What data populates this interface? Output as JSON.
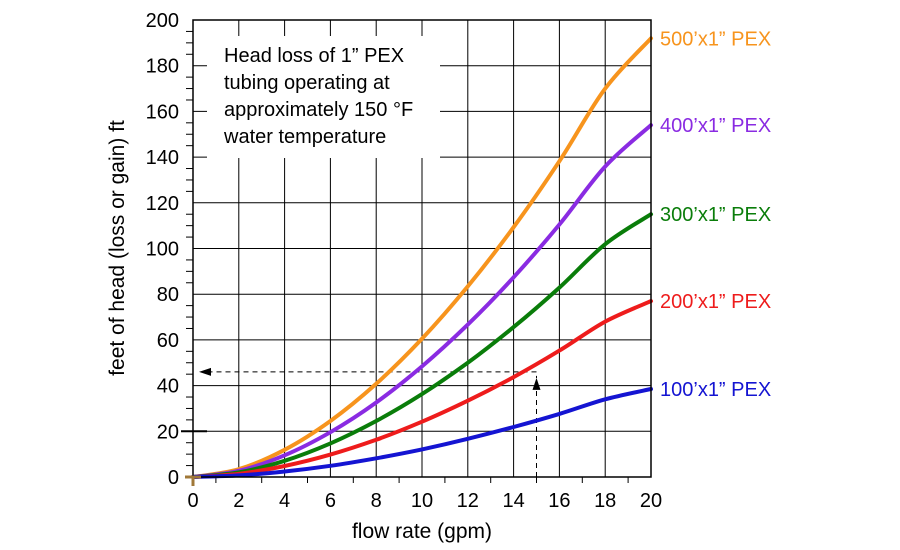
{
  "chart_data": {
    "type": "line",
    "title": "Head loss of 1” PEX tubing operating at approximately 150 °F water temperature",
    "annotation_lines": [
      "Head loss of 1” PEX",
      "tubing operating at",
      "approximately 150 °F",
      "water temperature"
    ],
    "xlabel": "flow rate (gpm)",
    "ylabel": "feet of head (loss or gain) ft",
    "xlim": [
      0,
      20
    ],
    "ylim": [
      0,
      200
    ],
    "x_ticks": [
      0,
      2,
      4,
      6,
      8,
      10,
      12,
      14,
      16,
      18,
      20
    ],
    "y_ticks": [
      0,
      20,
      40,
      60,
      80,
      100,
      120,
      140,
      160,
      180,
      200
    ],
    "grid": true,
    "x": [
      0,
      2,
      4,
      6,
      8,
      10,
      12,
      14,
      16,
      18,
      20
    ],
    "series": [
      {
        "name": "500’x1” PEX",
        "color": "#f7941d",
        "values": [
          0,
          3.4,
          11.9,
          24.5,
          40.8,
          60.5,
          83.4,
          109.3,
          138.2,
          170.0,
          192
        ]
      },
      {
        "name": "400’x1” PEX",
        "color": "#8a2be2",
        "values": [
          0,
          2.7,
          9.5,
          19.6,
          32.6,
          48.4,
          66.7,
          87.4,
          110.5,
          135.9,
          154
        ]
      },
      {
        "name": "300’x1” PEX",
        "color": "#0a7d0a",
        "values": [
          0,
          2.0,
          7.1,
          14.7,
          24.5,
          36.3,
          50.0,
          65.6,
          82.9,
          101.9,
          115
        ]
      },
      {
        "name": "200’x1” PEX",
        "color": "#ee1c1c",
        "values": [
          0,
          1.4,
          4.8,
          9.8,
          16.3,
          24.2,
          33.4,
          43.7,
          55.3,
          68.0,
          77
        ]
      },
      {
        "name": "100’x1” PEX",
        "color": "#1414d2",
        "values": [
          0,
          0.7,
          2.4,
          4.9,
          8.2,
          12.1,
          16.7,
          21.9,
          27.6,
          34.0,
          38.5
        ]
      }
    ],
    "lookup": {
      "x": 15,
      "y": 46,
      "color": "#000000"
    },
    "colors": {
      "grid": "#000000",
      "axis": "#000000",
      "origin_marker": "#a07838"
    }
  }
}
